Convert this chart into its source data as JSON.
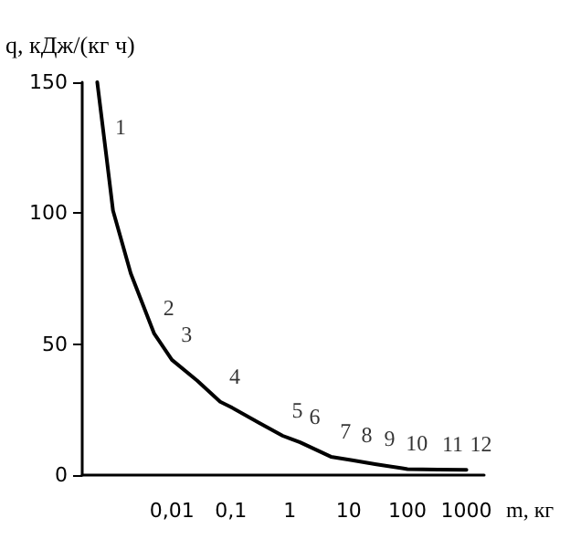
{
  "chart_data": {
    "type": "line",
    "xlabel": "m, кг",
    "ylabel": "q, кДж/(кг ч)",
    "log": "x",
    "grid": false,
    "marker": "none",
    "line_style": "solid",
    "x": [
      0.00054,
      0.00076,
      0.001,
      0.002,
      0.005,
      0.01,
      0.027,
      0.066,
      0.1,
      0.3,
      0.76,
      1,
      1.5,
      5,
      11.5,
      28,
      81,
      100,
      330,
      1000
    ],
    "series": [
      {
        "color": "#000000",
        "values": [
          150,
          123,
          101,
          77,
          54,
          44,
          36,
          28,
          26,
          20,
          15,
          14,
          12.5,
          7,
          5.7,
          4.2,
          2.6,
          2.3,
          2.1,
          2
        ]
      }
    ],
    "xlim": [
      0.0003,
      2000
    ],
    "xticks": [
      {
        "value": 0.01,
        "label": "0,01"
      },
      {
        "value": 0.1,
        "label": "0,1"
      },
      1,
      10,
      100,
      1000
    ],
    "ylim": [
      0,
      150
    ],
    "yticks": [
      0,
      50,
      100,
      150
    ],
    "annotations": [
      {
        "text": "1",
        "x": 0.00076,
        "y": 123
      },
      {
        "text": "2",
        "x": 0.005,
        "y": 54
      },
      {
        "text": "3",
        "x": 0.01,
        "y": 44
      },
      {
        "text": "4",
        "x": 0.066,
        "y": 28
      },
      {
        "text": "5",
        "x": 0.76,
        "y": 15
      },
      {
        "text": "6",
        "x": 1.5,
        "y": 12.5
      },
      {
        "text": "7",
        "x": 5,
        "y": 7
      },
      {
        "text": "8",
        "x": 11.5,
        "y": 5.7
      },
      {
        "text": "9",
        "x": 28,
        "y": 4.2
      },
      {
        "text": "10",
        "x": 81,
        "y": 2.6
      },
      {
        "text": "11",
        "x": 330,
        "y": 2.1
      },
      {
        "text": "12",
        "x": 1000,
        "y": 2
      }
    ]
  }
}
